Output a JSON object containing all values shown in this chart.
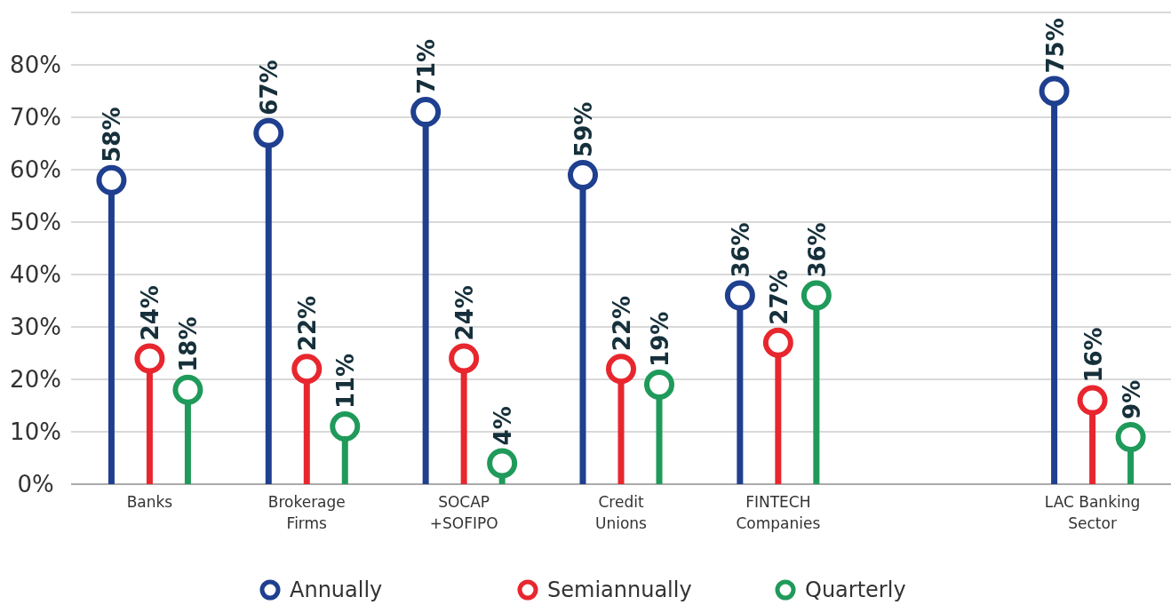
{
  "chart_data": {
    "type": "lollipop",
    "categories": [
      "Banks",
      "Brokerage\nFirms",
      "SOCAP\n+SOFIPO",
      "Credit\nUnions",
      "FINTECH\nCompanies",
      null,
      "LAC Banking\nSector"
    ],
    "series": [
      {
        "name": "Annually",
        "color": "#1f3f8f",
        "values": [
          58,
          67,
          71,
          59,
          36,
          null,
          75
        ],
        "value_labels": [
          "58%",
          "67%",
          "71%",
          "59%",
          "36%",
          null,
          "75%"
        ]
      },
      {
        "name": "Semiannually",
        "color": "#e8262e",
        "values": [
          24,
          22,
          24,
          22,
          27,
          null,
          16
        ],
        "value_labels": [
          "24%",
          "22%",
          "24%",
          "22%",
          "27%",
          null,
          "16%"
        ]
      },
      {
        "name": "Quarterly",
        "color": "#1f9a5a",
        "values": [
          18,
          11,
          4,
          19,
          36,
          null,
          9
        ],
        "value_labels": [
          "18%",
          "11%",
          "4%",
          "19%",
          "36%",
          null,
          "9%"
        ]
      }
    ],
    "ylim": [
      0,
      90
    ],
    "yticks": [
      {
        "value": 0,
        "label": "0%"
      },
      {
        "value": 10,
        "label": "10%"
      },
      {
        "value": 20,
        "label": "20%"
      },
      {
        "value": 30,
        "label": "30%"
      },
      {
        "value": 40,
        "label": "40%"
      },
      {
        "value": 50,
        "label": "50%"
      },
      {
        "value": 60,
        "label": "60%"
      },
      {
        "value": 70,
        "label": "70%"
      },
      {
        "value": 80,
        "label": "80%"
      },
      {
        "value": 90,
        "label": null
      }
    ],
    "grid": "y",
    "legend": "bottom",
    "marker": "circle"
  }
}
